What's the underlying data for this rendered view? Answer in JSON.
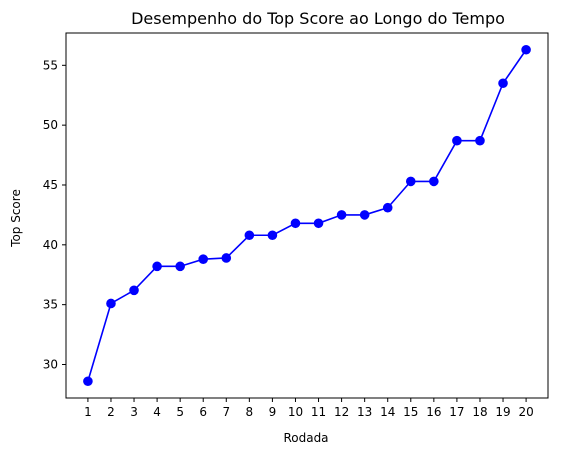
{
  "chart_data": {
    "type": "line",
    "title": "Desempenho do Top Score ao Longo do Tempo",
    "xlabel": "Rodada",
    "ylabel": "Top Score",
    "x": [
      1,
      2,
      3,
      4,
      5,
      6,
      7,
      8,
      9,
      10,
      11,
      12,
      13,
      14,
      15,
      16,
      17,
      18,
      19,
      20
    ],
    "series": [
      {
        "values": [
          28.6,
          35.1,
          36.2,
          38.2,
          38.2,
          38.8,
          38.9,
          40.8,
          40.8,
          41.8,
          41.8,
          42.5,
          42.5,
          43.1,
          45.3,
          45.3,
          48.7,
          48.7,
          53.5,
          56.3
        ],
        "color": "#0000ff",
        "marker": "circle"
      }
    ],
    "xticks": [
      "1",
      "2",
      "3",
      "4",
      "5",
      "6",
      "7",
      "8",
      "9",
      "10",
      "11",
      "12",
      "13",
      "14",
      "15",
      "16",
      "17",
      "18",
      "19",
      "20"
    ],
    "yticks": [
      30,
      35,
      40,
      45,
      50,
      55
    ],
    "ylim": [
      27.2,
      57.7
    ],
    "xlim": [
      0.05,
      20.95
    ],
    "grid": false,
    "legend": false
  }
}
